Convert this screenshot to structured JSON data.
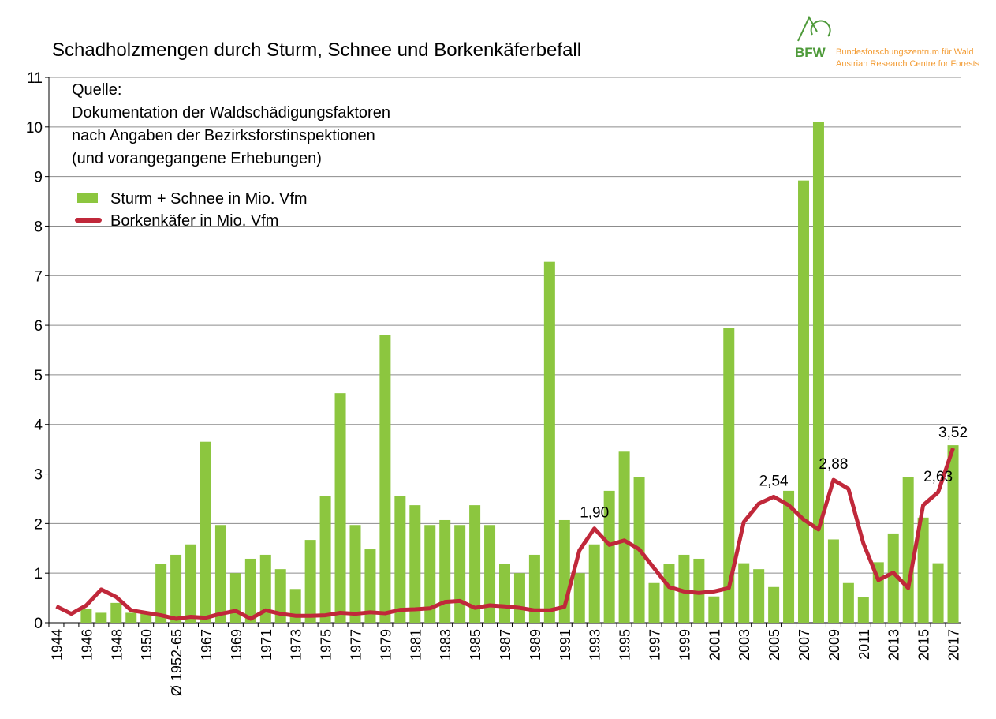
{
  "chart_data": {
    "type": "bar_line",
    "title": "Schadholzmengen durch Sturm, Schnee und Borkenkäferbefall",
    "annotations": [
      "Quelle:",
      "Dokumentation der Waldschädigungsfaktoren",
      "nach Angaben der Bezirksforstinspektionen",
      "(und vorangegangene Erhebungen)"
    ],
    "logo": {
      "mark": "BFW",
      "line1": "Bundesforschungszentrum für Wald",
      "line2": "Austrian Research Centre for Forests"
    },
    "categories": [
      "1944",
      null,
      "1946",
      null,
      "1948",
      null,
      "1950",
      null,
      "Ø 1952-65",
      null,
      "1967",
      null,
      "1969",
      null,
      "1971",
      null,
      "1973",
      null,
      "1975",
      null,
      "1977",
      null,
      "1979",
      null,
      "1981",
      null,
      "1983",
      null,
      "1985",
      null,
      "1987",
      null,
      "1989",
      null,
      "1991",
      null,
      "1993",
      null,
      "1995",
      null,
      "1997",
      null,
      "1999",
      null,
      "2001",
      null,
      "2003",
      null,
      "2005",
      null,
      "2007",
      null,
      "2009",
      null,
      "2011",
      null,
      "2013",
      null,
      "2015",
      null,
      "2017"
    ],
    "series": [
      {
        "name": "Sturm + Schnee in Mio. Vfm",
        "kind": "bar",
        "color": "#8cc63f",
        "values": [
          0,
          0,
          0.28,
          0.2,
          0.4,
          0.2,
          0.2,
          1.18,
          1.37,
          1.58,
          3.65,
          1.97,
          1.0,
          1.29,
          1.37,
          1.08,
          0.68,
          1.67,
          2.56,
          4.63,
          1.97,
          1.48,
          5.8,
          2.56,
          2.37,
          1.97,
          2.07,
          1.97,
          2.37,
          1.97,
          1.18,
          1.0,
          1.37,
          7.28,
          2.07,
          1.0,
          1.58,
          2.66,
          3.45,
          2.93,
          0.8,
          1.18,
          1.37,
          1.29,
          0.53,
          5.95,
          1.2,
          1.08,
          0.72,
          2.66,
          8.92,
          10.1,
          1.68,
          0.8,
          0.52,
          1.22,
          1.8,
          2.93,
          2.12,
          1.2,
          3.58
        ]
      },
      {
        "name": "Borkenkäfer in Mio. Vfm",
        "kind": "line",
        "color": "#c0283a",
        "values": [
          0.33,
          0.18,
          0.35,
          0.67,
          0.52,
          0.25,
          0.2,
          0.15,
          0.08,
          0.12,
          0.1,
          0.18,
          0.24,
          0.08,
          0.25,
          0.18,
          0.14,
          0.14,
          0.15,
          0.2,
          0.18,
          0.21,
          0.19,
          0.26,
          0.27,
          0.29,
          0.42,
          0.44,
          0.3,
          0.35,
          0.33,
          0.3,
          0.25,
          0.25,
          0.32,
          1.46,
          1.9,
          1.57,
          1.66,
          1.48,
          1.1,
          0.72,
          0.63,
          0.6,
          0.63,
          0.7,
          2.03,
          2.4,
          2.54,
          2.37,
          2.08,
          1.88,
          2.88,
          2.7,
          1.6,
          0.86,
          1.01,
          0.7,
          2.37,
          2.63,
          3.52
        ],
        "value_labels": [
          null,
          null,
          null,
          null,
          null,
          null,
          null,
          null,
          null,
          null,
          null,
          null,
          null,
          null,
          null,
          null,
          null,
          null,
          null,
          null,
          null,
          null,
          null,
          null,
          null,
          null,
          null,
          null,
          null,
          null,
          null,
          null,
          null,
          null,
          null,
          null,
          "1,90",
          null,
          null,
          null,
          null,
          null,
          null,
          null,
          null,
          null,
          null,
          null,
          "2,54",
          null,
          null,
          null,
          "2,88",
          null,
          null,
          null,
          null,
          null,
          null,
          "2,63",
          "3,52"
        ]
      }
    ],
    "ylim": [
      0,
      11
    ],
    "yticks": [
      0,
      1,
      2,
      3,
      4,
      5,
      6,
      7,
      8,
      9,
      10,
      11
    ],
    "grid": true
  }
}
